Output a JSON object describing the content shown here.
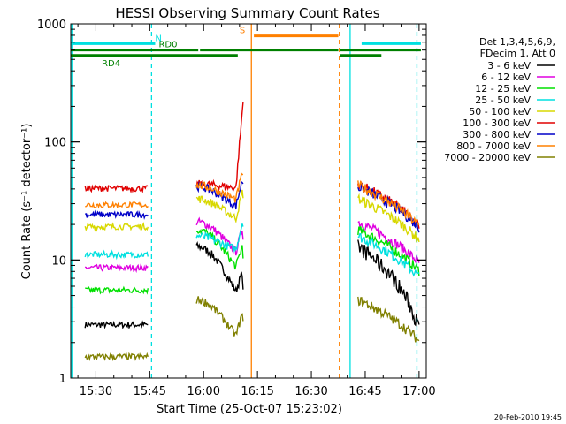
{
  "chart_data": {
    "type": "line",
    "title": "HESSI Observing Summary Count Rates",
    "xlabel": "Start Time (25-Oct-07 15:23:02)",
    "ylabel": "Count Rate (s⁻¹ detector⁻¹)",
    "y_scale": "log",
    "ylim": [
      1,
      1000
    ],
    "xlim": [
      "15:23",
      "17:02"
    ],
    "x_ticks": [
      {
        "t": 30,
        "label": "15:30"
      },
      {
        "t": 45,
        "label": "15:45"
      },
      {
        "t": 60,
        "label": "16:00"
      },
      {
        "t": 75,
        "label": "16:15"
      },
      {
        "t": 90,
        "label": "16:30"
      },
      {
        "t": 105,
        "label": "16:45"
      },
      {
        "t": 120,
        "label": "17:00"
      }
    ],
    "y_ticks": [
      {
        "v": 1,
        "label": "1"
      },
      {
        "v": 10,
        "label": "10"
      },
      {
        "v": 100,
        "label": "100"
      },
      {
        "v": 1000,
        "label": "1000"
      }
    ],
    "legend_header": [
      "Det 1,3,4,5,6,9,",
      "FDecim 1, Att 0"
    ],
    "legend_position": "right",
    "series": [
      {
        "name": "3 - 6 keV",
        "color": "#000000",
        "base": 13,
        "lo": 2.8
      },
      {
        "name": "6 - 12 keV",
        "color": "#e000e0",
        "base": 21,
        "lo": 8.5
      },
      {
        "name": "12 - 25 keV",
        "color": "#00e000",
        "base": 18,
        "lo": 5.5
      },
      {
        "name": "25 - 50 keV",
        "color": "#00e0e0",
        "base": 16,
        "lo": 11
      },
      {
        "name": "50 - 100 keV",
        "color": "#d8d800",
        "base": 33,
        "lo": 19
      },
      {
        "name": "100 - 300 keV",
        "color": "#e00000",
        "base": 44,
        "lo": 40
      },
      {
        "name": "300 - 800 keV",
        "color": "#0000c8",
        "base": 42,
        "lo": 24
      },
      {
        "name": "800 - 7000 keV",
        "color": "#ff8000",
        "base": 43,
        "lo": 29
      },
      {
        "name": "7000 - 20000 keV",
        "color": "#808000",
        "base": 4.6,
        "lo": 1.5
      }
    ],
    "data_windows": [
      [
        27,
        44.5
      ],
      [
        58,
        71
      ],
      [
        103,
        120
      ]
    ],
    "gaps": [
      [
        44.5,
        47.5
      ],
      [
        71,
        98
      ]
    ],
    "flags": [
      {
        "label": "N",
        "color": "#00e0e0",
        "level": 680,
        "segments": [
          [
            23,
            47
          ],
          [
            104,
            121
          ]
        ]
      },
      {
        "label": "RD0",
        "color": "#008000",
        "level": 600,
        "segments": [
          [
            23,
            59
          ],
          [
            59,
            98
          ],
          [
            98,
            121
          ]
        ]
      },
      {
        "label": "RD4",
        "color": "#008000",
        "level": 540,
        "segments": [
          [
            23,
            70
          ],
          [
            98,
            110
          ]
        ]
      },
      {
        "label": "S",
        "color": "#ff8000",
        "level": 790,
        "segments": [
          [
            74,
            98
          ]
        ]
      }
    ],
    "markers": [
      {
        "t": 23.3,
        "color": "#00e0e0",
        "style": "solid"
      },
      {
        "t": 45.5,
        "color": "#00e0e0",
        "style": "dashed"
      },
      {
        "t": 73.3,
        "color": "#ff8000",
        "style": "solid"
      },
      {
        "t": 97.8,
        "color": "#ff8000",
        "style": "dashed"
      },
      {
        "t": 100.8,
        "color": "#00e0e0",
        "style": "solid"
      },
      {
        "t": 119.4,
        "color": "#00e0e0",
        "style": "dashed"
      }
    ]
  },
  "footer": {
    "timestamp": "20-Feb-2010 19:45"
  }
}
